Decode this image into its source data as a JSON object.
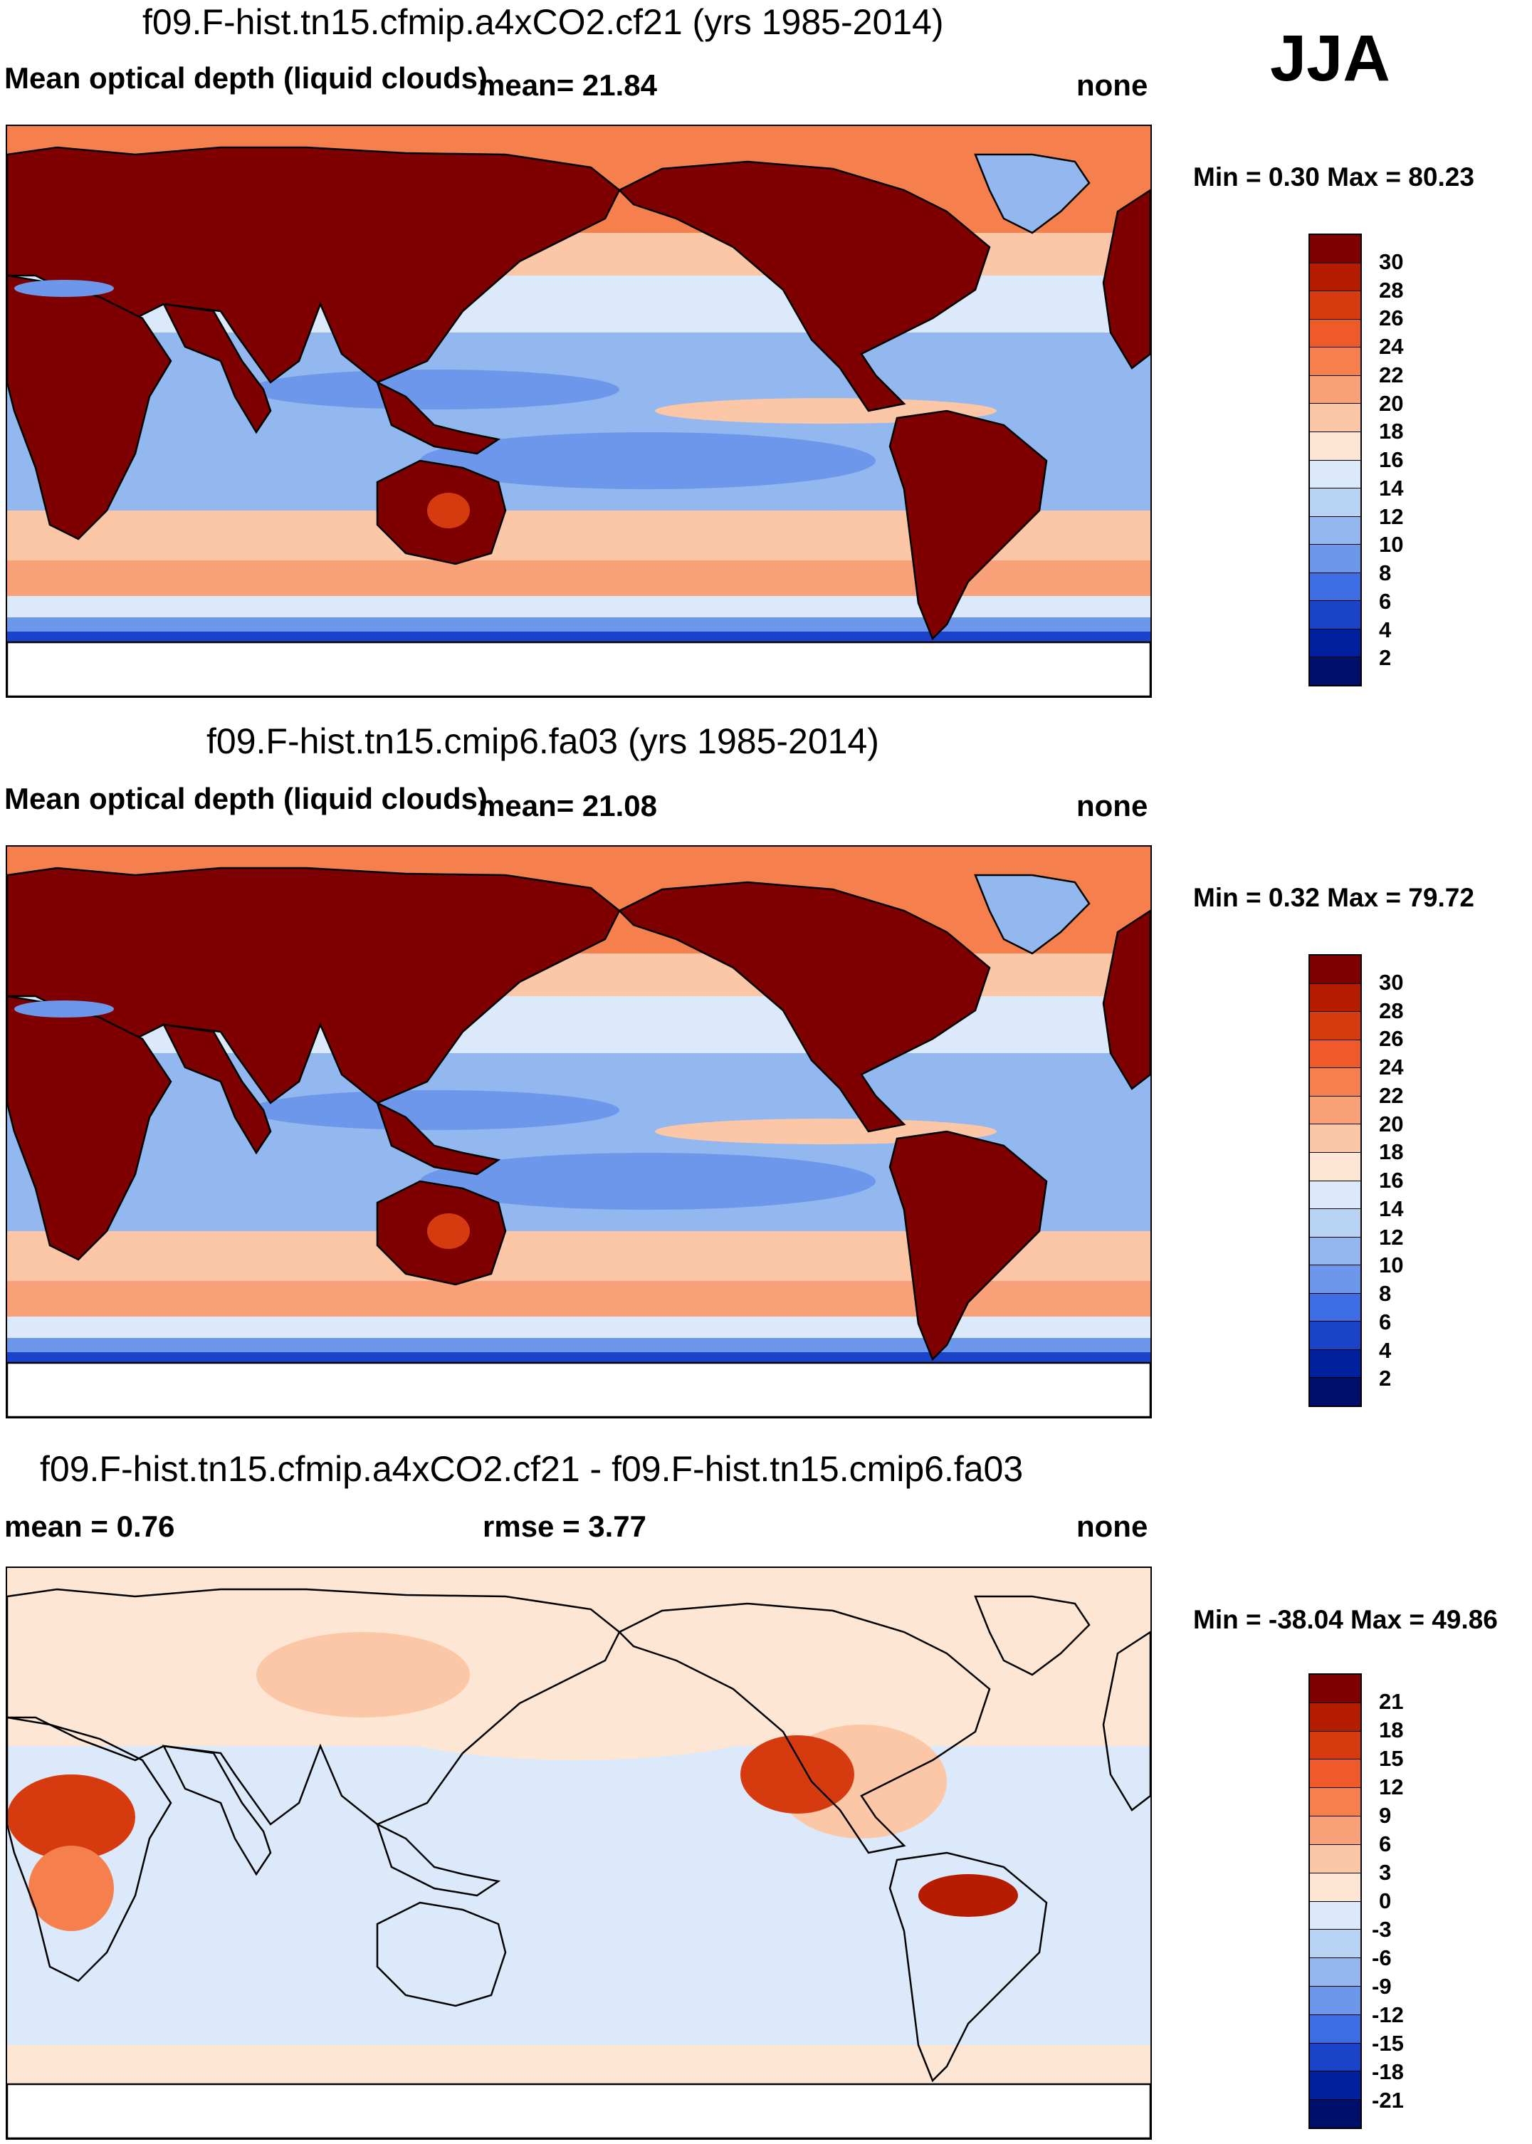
{
  "season": "JJA",
  "panels": [
    {
      "id": "top",
      "title": "f09.F-hist.tn15.cfmip.a4xCO2.cf21 (yrs 1985-2014)",
      "variable": "Mean optical depth (liquid clouds)",
      "mean_text": "mean=  21.84",
      "units": "none",
      "min_max": "Min =   0.30 Max =  80.23",
      "colorbar_labels": [
        "30",
        "28",
        "26",
        "24",
        "22",
        "20",
        "18",
        "16",
        "14",
        "12",
        "10",
        "8",
        "6",
        "4",
        "2"
      ],
      "colorbar_colors": [
        "#7f0000",
        "#b51c00",
        "#d63b10",
        "#f05a2a",
        "#f5804e",
        "#f9a27a",
        "#fcc7a6",
        "#fde6d4",
        "#dbe9fa",
        "#b9d3f5",
        "#93b7ef",
        "#6d97ea",
        "#3e6ce3",
        "#1a43c9",
        "#00209e",
        "#00106a"
      ]
    },
    {
      "id": "middle",
      "title": "f09.F-hist.tn15.cmip6.fa03 (yrs 1985-2014)",
      "variable": "Mean optical depth (liquid clouds)",
      "mean_text": "mean=  21.08",
      "units": "none",
      "min_max": "Min =   0.32 Max =  79.72",
      "colorbar_labels": [
        "30",
        "28",
        "26",
        "24",
        "22",
        "20",
        "18",
        "16",
        "14",
        "12",
        "10",
        "8",
        "6",
        "4",
        "2"
      ],
      "colorbar_colors": [
        "#7f0000",
        "#b51c00",
        "#d63b10",
        "#f05a2a",
        "#f5804e",
        "#f9a27a",
        "#fcc7a6",
        "#fde6d4",
        "#dbe9fa",
        "#b9d3f5",
        "#93b7ef",
        "#6d97ea",
        "#3e6ce3",
        "#1a43c9",
        "#00209e",
        "#00106a"
      ]
    },
    {
      "id": "bottom",
      "title": "f09.F-hist.tn15.cfmip.a4xCO2.cf21 - f09.F-hist.tn15.cmip6.fa03",
      "mean_text": "mean =   0.76",
      "rmse_text": "rmse =    3.77",
      "units": "none",
      "min_max": "Min = -38.04 Max =  49.86",
      "colorbar_labels": [
        "21",
        "18",
        "15",
        "12",
        "9",
        "6",
        "3",
        "0",
        "-3",
        "-6",
        "-9",
        "-12",
        "-15",
        "-18",
        "-21"
      ],
      "colorbar_colors": [
        "#7f0000",
        "#b51c00",
        "#d63b10",
        "#f05a2a",
        "#f5804e",
        "#f9a27a",
        "#fcc7a6",
        "#fde6d4",
        "#dbe9fa",
        "#b9d3f5",
        "#93b7ef",
        "#6d97ea",
        "#3e6ce3",
        "#1a43c9",
        "#00209e",
        "#00106a"
      ]
    }
  ]
}
